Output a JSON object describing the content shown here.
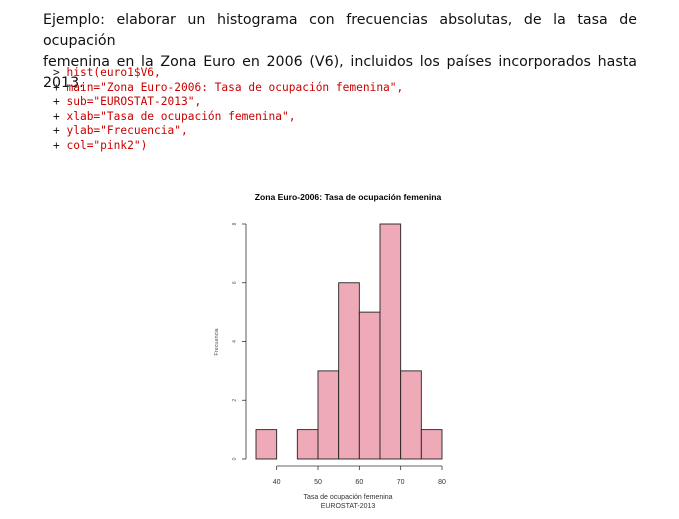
{
  "intro": {
    "line1": "Ejemplo: elaborar un histograma con frecuencias absolutas, de la tasa de ocupación",
    "line2": "femenina en la Zona Euro en 2006 (V6), incluidos los países incorporados hasta 2013."
  },
  "code": [
    {
      "prompt": "> ",
      "text": "hist(euro1$V6,"
    },
    {
      "prompt": "+ ",
      "text": "main=\"Zona Euro-2006: Tasa de ocupación femenina\","
    },
    {
      "prompt": "+ ",
      "text": "sub=\"EUROSTAT-2013\","
    },
    {
      "prompt": "+ ",
      "text": "xlab=\"Tasa de ocupación femenina\","
    },
    {
      "prompt": "+ ",
      "text": "ylab=\"Frecuencia\","
    },
    {
      "prompt": "+ ",
      "text": "col=\"pink2\")"
    }
  ],
  "chart_data": {
    "type": "histogram",
    "title": "Zona Euro-2006: Tasa de ocupación femenina",
    "subtitle": "EUROSTAT-2013",
    "xlabel": "Tasa de ocupación femenina",
    "ylabel": "Frecuencia",
    "bin_edges": [
      35,
      40,
      45,
      50,
      55,
      60,
      65,
      70,
      75,
      80
    ],
    "values": [
      1,
      0,
      1,
      3,
      6,
      5,
      8,
      3,
      1
    ],
    "x_ticks": [
      40,
      50,
      60,
      70,
      80
    ],
    "y_ticks": [
      0,
      2,
      4,
      6,
      8
    ],
    "xlim": [
      35,
      80
    ],
    "ylim": [
      0,
      8
    ],
    "bar_color": "#eeaab6",
    "edge_color": "#222222"
  }
}
